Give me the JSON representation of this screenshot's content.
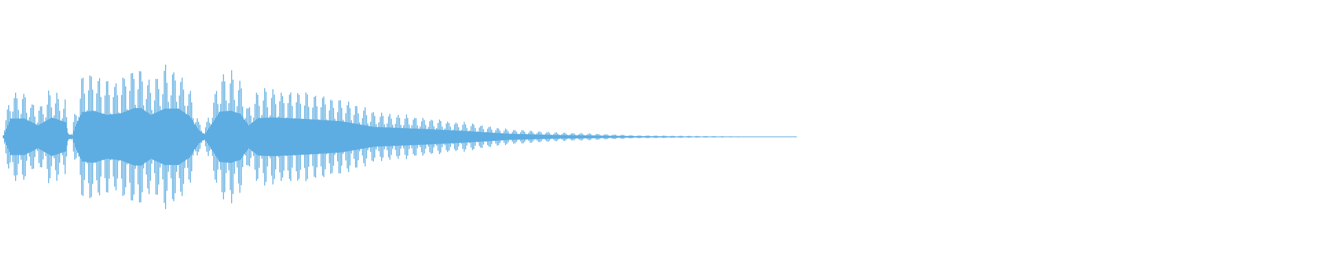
{
  "chart_data": {
    "type": "waveform",
    "title": "",
    "xlabel": "",
    "ylabel": "",
    "axes_visible": false,
    "grid": false,
    "legend": "none",
    "color": "#5DADE2",
    "background": "#FFFFFF",
    "amplitude_range": [
      -1,
      1
    ],
    "envelope": [
      [
        0,
        0.03
      ],
      [
        5,
        0.35
      ],
      [
        15,
        0.35
      ],
      [
        25,
        0.22
      ],
      [
        35,
        0.37
      ],
      [
        45,
        0.28
      ],
      [
        47,
        0.05
      ],
      [
        50,
        0.03
      ],
      [
        52,
        0.2
      ],
      [
        57,
        0.47
      ],
      [
        65,
        0.5
      ],
      [
        75,
        0.42
      ],
      [
        85,
        0.45
      ],
      [
        95,
        0.55
      ],
      [
        100,
        0.55
      ],
      [
        107,
        0.42
      ],
      [
        117,
        0.54
      ],
      [
        127,
        0.54
      ],
      [
        135,
        0.4
      ],
      [
        142,
        0.12
      ],
      [
        146,
        0.05
      ],
      [
        150,
        0.2
      ],
      [
        157,
        0.48
      ],
      [
        165,
        0.5
      ],
      [
        172,
        0.44
      ],
      [
        178,
        0.22
      ],
      [
        185,
        0.36
      ],
      [
        196,
        0.37
      ],
      [
        220,
        0.34
      ],
      [
        245,
        0.3
      ],
      [
        269,
        0.19
      ],
      [
        306,
        0.15
      ],
      [
        336,
        0.11
      ],
      [
        367,
        0.06
      ],
      [
        400,
        0.035
      ],
      [
        428,
        0.025
      ],
      [
        460,
        0.012
      ],
      [
        490,
        0.008
      ],
      [
        530,
        0.004
      ],
      [
        576,
        0.002
      ]
    ]
  }
}
